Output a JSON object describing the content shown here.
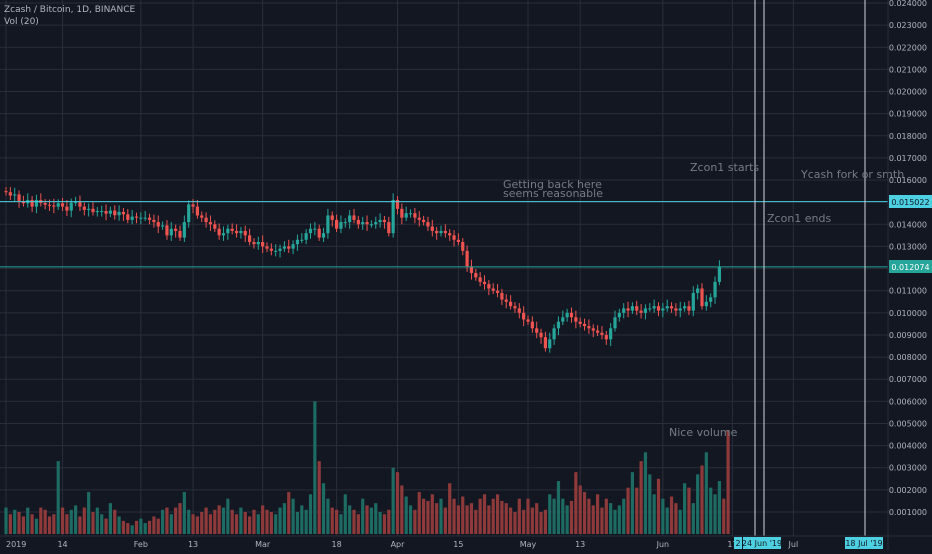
{
  "header": {
    "symbol_line": "Zcash / Bitcoin, 1D, BINANCE",
    "volume_label": "Vol (20)"
  },
  "colors": {
    "background": "#131722",
    "grid": "#2a2e39",
    "up": "#26a69a",
    "down": "#ef5350",
    "axis_text": "#b2b5be",
    "annotation_text": "#787b86",
    "hline": "#4dd0e1",
    "price_tag": "#26a69a"
  },
  "chart_data": {
    "type": "candlestick",
    "x_axis_ticks": [
      "2019",
      "14",
      "Feb",
      "13",
      "Mar",
      "18",
      "Apr",
      "15",
      "May",
      "13",
      "Jun",
      "17",
      "Jul"
    ],
    "x_axis_date_tags": [
      "24 Jun '19",
      "18 Jul '19"
    ],
    "x_axis_partial_tag": "2",
    "y_axis_ticks": [
      "0.024000",
      "0.023000",
      "0.022000",
      "0.021000",
      "0.020000",
      "0.019000",
      "0.018000",
      "0.017000",
      "0.016000",
      "0.015000",
      "0.014000",
      "0.013000",
      "0.012000",
      "0.011000",
      "0.010000",
      "0.009000",
      "0.008000",
      "0.007000",
      "0.006000",
      "0.005000",
      "0.004000",
      "0.003000",
      "0.002000",
      "0.001000"
    ],
    "ylim": [
      0.0005,
      0.0241
    ],
    "price_tags": [
      "0.015022",
      "0.012074"
    ],
    "horizontal_levels": [
      0.015022,
      0.012074
    ],
    "annotations": [
      {
        "text": "Zcon1 starts"
      },
      {
        "text": "Ycash fork or smth"
      },
      {
        "text": "Getting back here"
      },
      {
        "text": "seems reasonable"
      },
      {
        "text": "Zcon1 ends"
      },
      {
        "text": "Nice volume"
      }
    ],
    "vertical_markers": [
      "24 Jun '19",
      "18 Jul '19"
    ],
    "start_date": "2019-01-01",
    "closes": [
      0.01545,
      0.0153,
      0.01535,
      0.01505,
      0.01495,
      0.0151,
      0.0148,
      0.0151,
      0.01496,
      0.01488,
      0.01485,
      0.0148,
      0.01495,
      0.0148,
      0.01462,
      0.01498,
      0.015,
      0.0148,
      0.01465,
      0.0147,
      0.01455,
      0.0146,
      0.0146,
      0.01448,
      0.01462,
      0.01441,
      0.01456,
      0.01445,
      0.0142,
      0.01435,
      0.0143,
      0.0143,
      0.0143,
      0.0142,
      0.0141,
      0.0139,
      0.01395,
      0.0135,
      0.0138,
      0.0137,
      0.0134,
      0.0141,
      0.0149,
      0.0148,
      0.0144,
      0.0143,
      0.0141,
      0.014,
      0.0138,
      0.0135,
      0.0136,
      0.0138,
      0.0137,
      0.0136,
      0.0137,
      0.0135,
      0.0132,
      0.0131,
      0.0132,
      0.013,
      0.0129,
      0.0128,
      0.0128,
      0.0129,
      0.013,
      0.0129,
      0.0131,
      0.0133,
      0.0133,
      0.0136,
      0.0138,
      0.0138,
      0.0134,
      0.0136,
      0.0144,
      0.0142,
      0.0138,
      0.0141,
      0.0141,
      0.0144,
      0.0142,
      0.014,
      0.0141,
      0.014,
      0.014,
      0.0141,
      0.0142,
      0.0141,
      0.0136,
      0.0151,
      0.0147,
      0.0143,
      0.0145,
      0.0145,
      0.0143,
      0.0142,
      0.0141,
      0.0139,
      0.0137,
      0.0136,
      0.0137,
      0.0136,
      0.0135,
      0.0133,
      0.0132,
      0.0128,
      0.0121,
      0.0118,
      0.0116,
      0.0114,
      0.0113,
      0.0111,
      0.011,
      0.0109,
      0.0106,
      0.0105,
      0.0103,
      0.0102,
      0.01,
      0.0097,
      0.0096,
      0.0093,
      0.0091,
      0.0089,
      0.0084,
      0.0088,
      0.0093,
      0.0096,
      0.0098,
      0.01,
      0.0098,
      0.0096,
      0.0095,
      0.0094,
      0.0093,
      0.0092,
      0.0091,
      0.009,
      0.0088,
      0.0093,
      0.0098,
      0.01,
      0.0102,
      0.0101,
      0.0103,
      0.0101,
      0.01,
      0.0102,
      0.0102,
      0.0103,
      0.0101,
      0.0102,
      0.0103,
      0.0102,
      0.0101,
      0.0102,
      0.0103,
      0.0101,
      0.0109,
      0.0111,
      0.0103,
      0.0105,
      0.0107,
      0.0114,
      0.012074
    ],
    "volumes": [
      0.0012,
      0.0009,
      0.0011,
      0.001,
      0.0008,
      0.0012,
      0.0009,
      0.0007,
      0.0012,
      0.0011,
      0.0008,
      0.0009,
      0.0033,
      0.0012,
      0.0009,
      0.0011,
      0.0013,
      0.0008,
      0.0012,
      0.0019,
      0.001,
      0.0012,
      0.0009,
      0.0007,
      0.0014,
      0.0011,
      0.0008,
      0.0006,
      0.0005,
      0.0004,
      0.0006,
      0.0007,
      0.0005,
      0.0006,
      0.0008,
      0.0007,
      0.0011,
      0.0012,
      0.0009,
      0.0012,
      0.0014,
      0.0019,
      0.0011,
      0.0009,
      0.0008,
      0.001,
      0.0012,
      0.0009,
      0.0011,
      0.0013,
      0.0012,
      0.0016,
      0.0011,
      0.0009,
      0.0012,
      0.001,
      0.0008,
      0.0011,
      0.0009,
      0.0013,
      0.0011,
      0.001,
      0.0009,
      0.0012,
      0.0014,
      0.0019,
      0.0016,
      0.001,
      0.0013,
      0.0011,
      0.0018,
      0.006,
      0.0033,
      0.0023,
      0.0016,
      0.0012,
      0.0011,
      0.0009,
      0.0018,
      0.0013,
      0.0011,
      0.0009,
      0.0016,
      0.0013,
      0.0012,
      0.0014,
      0.001,
      0.0009,
      0.0011,
      0.003,
      0.0028,
      0.0022,
      0.0017,
      0.0013,
      0.0011,
      0.0019,
      0.0016,
      0.0015,
      0.0018,
      0.0014,
      0.0016,
      0.0012,
      0.0023,
      0.0016,
      0.0013,
      0.0017,
      0.0013,
      0.0014,
      0.0011,
      0.0016,
      0.0018,
      0.0013,
      0.0016,
      0.0018,
      0.0015,
      0.0014,
      0.0012,
      0.001,
      0.0016,
      0.0011,
      0.0016,
      0.0012,
      0.0014,
      0.001,
      0.0011,
      0.0018,
      0.0016,
      0.0024,
      0.0016,
      0.0013,
      0.0015,
      0.0028,
      0.0022,
      0.0019,
      0.0016,
      0.0013,
      0.0018,
      0.0012,
      0.0016,
      0.0014,
      0.0011,
      0.0013,
      0.0016,
      0.0021,
      0.0028,
      0.0021,
      0.0033,
      0.0037,
      0.0027,
      0.0018,
      0.0025,
      0.0016,
      0.0012,
      0.0017,
      0.0014,
      0.0011,
      0.0023,
      0.0021,
      0.0014,
      0.0027,
      0.0031,
      0.0037,
      0.0021,
      0.0018,
      0.0024,
      0.0016,
      0.0047
    ]
  }
}
